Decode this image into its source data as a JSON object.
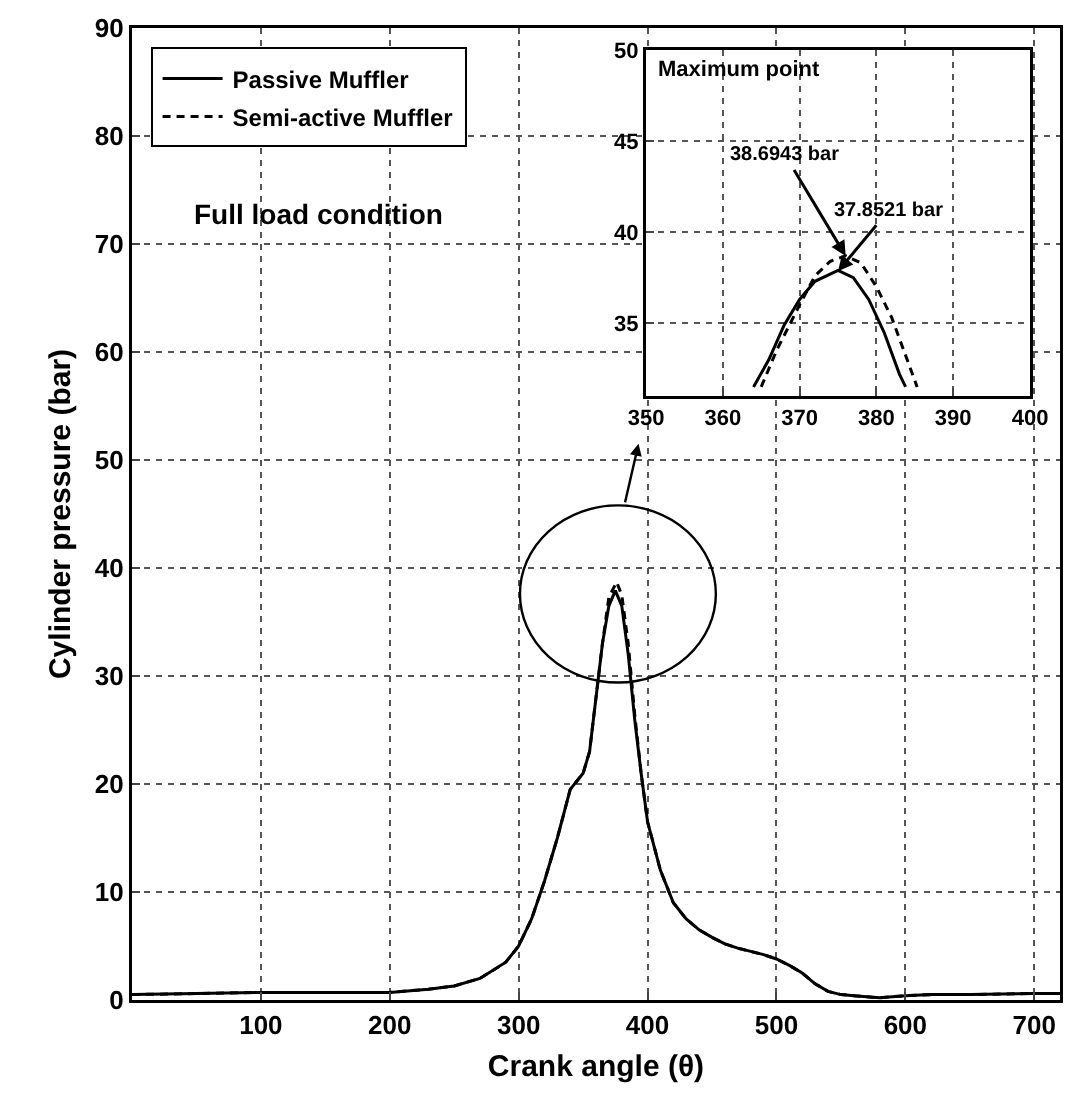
{
  "chart_data": [
    {
      "type": "line",
      "xlabel": "Crank angle (θ)",
      "ylabel": "Cylinder pressure (bar)",
      "xlim": [
        0,
        720
      ],
      "ylim": [
        0,
        90
      ],
      "xticks": [
        100,
        200,
        300,
        400,
        500,
        600,
        700
      ],
      "yticks": [
        0,
        10,
        20,
        30,
        40,
        50,
        60,
        70,
        80,
        90
      ],
      "grid": true,
      "legend": "top left",
      "annotations": [
        "Full load condition"
      ],
      "series": [
        {
          "name": "Passive Muffler",
          "color": "#000000",
          "line_style": "solid",
          "x": [
            0,
            50,
            100,
            150,
            200,
            230,
            250,
            270,
            290,
            300,
            310,
            320,
            330,
            340,
            350,
            355,
            360,
            365,
            370,
            375,
            380,
            385,
            390,
            395,
            400,
            410,
            420,
            430,
            440,
            450,
            460,
            470,
            480,
            490,
            500,
            510,
            520,
            530,
            540,
            550,
            560,
            580,
            600,
            620,
            650,
            700,
            720
          ],
          "values": [
            0.5,
            0.6,
            0.7,
            0.7,
            0.7,
            1.0,
            1.3,
            2.0,
            3.5,
            5,
            7.5,
            11,
            15,
            19.5,
            21,
            23,
            28,
            33,
            36.5,
            37.9,
            36.5,
            32,
            26,
            21,
            16.5,
            12,
            9,
            7.5,
            6.5,
            5.8,
            5.2,
            4.8,
            4.5,
            4.2,
            3.8,
            3.2,
            2.5,
            1.5,
            0.8,
            0.5,
            0.4,
            0.2,
            0.4,
            0.5,
            0.5,
            0.6,
            0.6
          ]
        },
        {
          "name": "Semi-active Muffler",
          "color": "#000000",
          "line_style": "dashed",
          "x": [
            0,
            50,
            100,
            150,
            200,
            230,
            250,
            270,
            290,
            300,
            310,
            320,
            330,
            340,
            350,
            355,
            360,
            365,
            370,
            376,
            380,
            385,
            390,
            395,
            400,
            410,
            420,
            430,
            440,
            450,
            460,
            470,
            480,
            490,
            500,
            510,
            520,
            530,
            540,
            550,
            560,
            580,
            600,
            620,
            650,
            700,
            720
          ],
          "values": [
            0.5,
            0.6,
            0.7,
            0.7,
            0.7,
            1.0,
            1.3,
            2.0,
            3.5,
            5,
            7.5,
            11,
            15,
            19.5,
            21,
            23,
            28,
            33,
            37.3,
            38.7,
            37.5,
            33,
            26.5,
            21,
            16.5,
            12,
            9,
            7.5,
            6.5,
            5.8,
            5.2,
            4.8,
            4.5,
            4.2,
            3.8,
            3.2,
            2.5,
            1.5,
            0.8,
            0.5,
            0.4,
            0.2,
            0.4,
            0.5,
            0.5,
            0.6,
            0.6
          ]
        }
      ]
    },
    {
      "type": "line",
      "title": "Maximum point",
      "xlim": [
        350,
        400
      ],
      "ylim": [
        31,
        50
      ],
      "xticks": [
        350,
        360,
        370,
        380,
        390,
        400
      ],
      "yticks": [
        35,
        40,
        45,
        50
      ],
      "grid": true,
      "annotations": [
        {
          "text": "38.6943 bar",
          "x": 376,
          "y": 38.69
        },
        {
          "text": "37.8521 bar",
          "x": 375,
          "y": 37.85
        }
      ],
      "series": [
        {
          "color": "#000000",
          "line_style": "solid",
          "x": [
            364,
            366,
            368,
            370,
            372,
            375,
            377,
            379,
            381,
            383,
            383.8
          ],
          "values": [
            31.5,
            33,
            34.9,
            36.3,
            37.3,
            37.9,
            37.5,
            36.3,
            34.5,
            32.2,
            31.5
          ]
        },
        {
          "color": "#000000",
          "line_style": "dashed",
          "x": [
            365,
            367,
            370,
            372,
            374,
            376,
            378,
            380,
            382,
            384,
            385.3
          ],
          "values": [
            31.5,
            33.5,
            36,
            37.6,
            38.4,
            38.7,
            38.3,
            37,
            35.3,
            33,
            31.5
          ]
        }
      ]
    }
  ]
}
